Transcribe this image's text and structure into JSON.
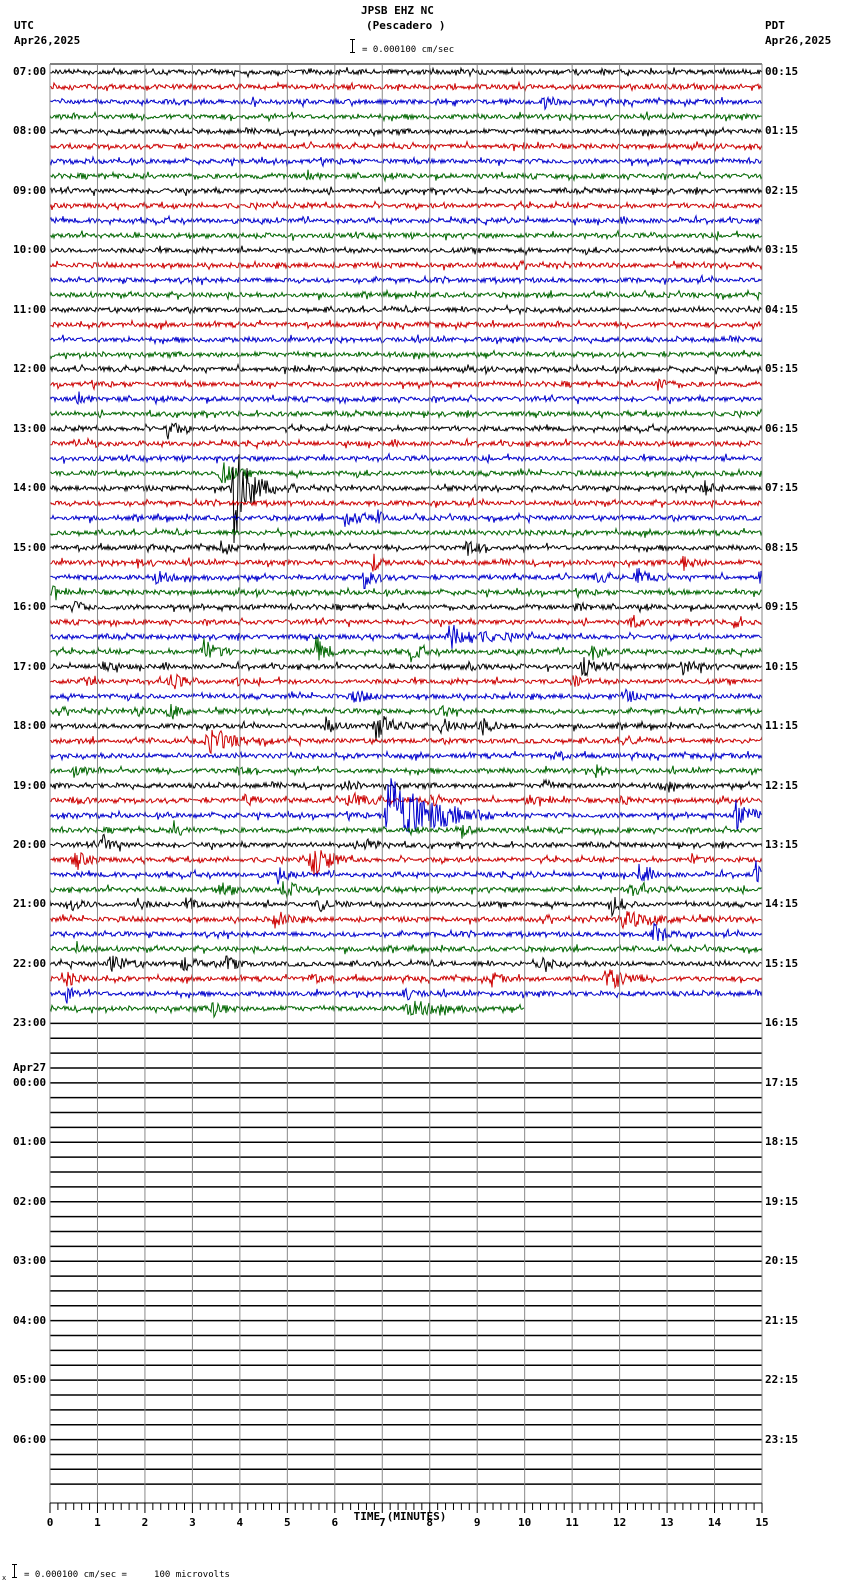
{
  "header": {
    "station": "JPSB EHZ NC",
    "location": "(Pescadero )",
    "left_tz": "UTC",
    "left_date": "Apr26,2025",
    "right_tz": "PDT",
    "right_date": "Apr26,2025",
    "scale_text": "= 0.000100 cm/sec"
  },
  "footer": {
    "scale_prefix": "x",
    "scale_text": "= 0.000100 cm/sec =     100 microvolts"
  },
  "colors": {
    "trace_cycle": [
      "#000000",
      "#cc0000",
      "#0000cc",
      "#006600"
    ],
    "grid": "#888888",
    "empty_line": "#000000"
  },
  "chart_data": {
    "type": "line",
    "title": "JPSB EHZ NC (Pescadero )",
    "xlabel": "TIME (MINUTES)",
    "ylabel": "",
    "x_ticks": [
      "0",
      "1",
      "2",
      "3",
      "4",
      "5",
      "6",
      "7",
      "8",
      "9",
      "10",
      "11",
      "12",
      "13",
      "14",
      "15"
    ],
    "xlim": [
      0,
      15
    ],
    "lines_per_hour": 4,
    "minutes_per_line": 15,
    "total_lines": 96,
    "data_lines": 64,
    "last_line_end_minute": 10.0,
    "left_labels": [
      {
        "line": 0,
        "text": "07:00"
      },
      {
        "line": 4,
        "text": "08:00"
      },
      {
        "line": 8,
        "text": "09:00"
      },
      {
        "line": 12,
        "text": "10:00"
      },
      {
        "line": 16,
        "text": "11:00"
      },
      {
        "line": 20,
        "text": "12:00"
      },
      {
        "line": 24,
        "text": "13:00"
      },
      {
        "line": 28,
        "text": "14:00"
      },
      {
        "line": 32,
        "text": "15:00"
      },
      {
        "line": 36,
        "text": "16:00"
      },
      {
        "line": 40,
        "text": "17:00"
      },
      {
        "line": 44,
        "text": "18:00"
      },
      {
        "line": 48,
        "text": "19:00"
      },
      {
        "line": 52,
        "text": "20:00"
      },
      {
        "line": 56,
        "text": "21:00"
      },
      {
        "line": 60,
        "text": "22:00"
      },
      {
        "line": 64,
        "text": "23:00"
      },
      {
        "line": 68,
        "text": "00:00",
        "date": "Apr27"
      },
      {
        "line": 72,
        "text": "01:00"
      },
      {
        "line": 76,
        "text": "02:00"
      },
      {
        "line": 80,
        "text": "03:00"
      },
      {
        "line": 84,
        "text": "04:00"
      },
      {
        "line": 88,
        "text": "05:00"
      },
      {
        "line": 92,
        "text": "06:00"
      }
    ],
    "right_labels": [
      "00:15",
      "01:15",
      "02:15",
      "03:15",
      "04:15",
      "05:15",
      "06:15",
      "07:15",
      "08:15",
      "09:15",
      "10:15",
      "11:15",
      "12:15",
      "13:15",
      "14:15",
      "15:15",
      "16:15",
      "17:15",
      "18:15",
      "19:15",
      "20:15",
      "21:15",
      "22:15",
      "23:15"
    ],
    "events": [
      {
        "line": 2,
        "min": 10.4,
        "amp": 6,
        "dur": 0.4
      },
      {
        "line": 7,
        "min": 5.4,
        "amp": 6,
        "dur": 0.3
      },
      {
        "line": 21,
        "min": 12.8,
        "amp": 6,
        "dur": 0.4
      },
      {
        "line": 22,
        "min": 0.55,
        "amp": 9,
        "dur": 0.3
      },
      {
        "line": 24,
        "min": 2.45,
        "amp": 10,
        "dur": 0.4
      },
      {
        "line": 25,
        "min": 0.8,
        "amp": 5,
        "dur": 0.3
      },
      {
        "line": 27,
        "min": 3.6,
        "amp": 12,
        "dur": 0.5
      },
      {
        "line": 28,
        "min": 3.85,
        "amp": 60,
        "dur": 0.6
      },
      {
        "line": 28,
        "min": 13.75,
        "amp": 8,
        "dur": 0.4
      },
      {
        "line": 30,
        "min": 6.2,
        "amp": 10,
        "dur": 0.5
      },
      {
        "line": 30,
        "min": 6.9,
        "amp": 6,
        "dur": 0.3
      },
      {
        "line": 32,
        "min": 3.6,
        "amp": 6,
        "dur": 0.3
      },
      {
        "line": 32,
        "min": 8.75,
        "amp": 10,
        "dur": 0.4
      },
      {
        "line": 33,
        "min": 1.8,
        "amp": 6,
        "dur": 0.3
      },
      {
        "line": 33,
        "min": 6.8,
        "amp": 8,
        "dur": 0.3
      },
      {
        "line": 33,
        "min": 13.3,
        "amp": 9,
        "dur": 0.4
      },
      {
        "line": 34,
        "min": 2.2,
        "amp": 8,
        "dur": 0.4
      },
      {
        "line": 34,
        "min": 6.6,
        "amp": 12,
        "dur": 0.4
      },
      {
        "line": 34,
        "min": 11.5,
        "amp": 6,
        "dur": 0.4
      },
      {
        "line": 34,
        "min": 12.35,
        "amp": 10,
        "dur": 0.4
      },
      {
        "line": 34,
        "min": 14.95,
        "amp": 12,
        "dur": 0.2
      },
      {
        "line": 35,
        "min": 0.05,
        "amp": 7,
        "dur": 0.2
      },
      {
        "line": 36,
        "min": 0.5,
        "amp": 7,
        "dur": 0.3
      },
      {
        "line": 36,
        "min": 11.1,
        "amp": 6,
        "dur": 0.3
      },
      {
        "line": 37,
        "min": 12.2,
        "amp": 6,
        "dur": 0.4
      },
      {
        "line": 37,
        "min": 14.4,
        "amp": 6,
        "dur": 0.3
      },
      {
        "line": 38,
        "min": 8.4,
        "amp": 12,
        "dur": 1.2
      },
      {
        "line": 39,
        "min": 3.2,
        "amp": 14,
        "dur": 0.5
      },
      {
        "line": 39,
        "min": 5.6,
        "amp": 14,
        "dur": 0.4
      },
      {
        "line": 39,
        "min": 7.6,
        "amp": 8,
        "dur": 0.4
      },
      {
        "line": 39,
        "min": 11.4,
        "amp": 8,
        "dur": 0.4
      },
      {
        "line": 40,
        "min": 1.1,
        "amp": 10,
        "dur": 0.3
      },
      {
        "line": 40,
        "min": 8.8,
        "amp": 5,
        "dur": 0.3
      },
      {
        "line": 40,
        "min": 11.2,
        "amp": 10,
        "dur": 0.5
      },
      {
        "line": 40,
        "min": 13.3,
        "amp": 10,
        "dur": 0.5
      },
      {
        "line": 41,
        "min": 0.7,
        "amp": 8,
        "dur": 0.3
      },
      {
        "line": 41,
        "min": 2.5,
        "amp": 12,
        "dur": 0.4
      },
      {
        "line": 41,
        "min": 3.9,
        "amp": 5,
        "dur": 0.2
      },
      {
        "line": 41,
        "min": 11.0,
        "amp": 6,
        "dur": 0.3
      },
      {
        "line": 42,
        "min": 6.4,
        "amp": 9,
        "dur": 0.4
      },
      {
        "line": 42,
        "min": 12.1,
        "amp": 7,
        "dur": 0.4
      },
      {
        "line": 43,
        "min": 1.8,
        "amp": 6,
        "dur": 0.3
      },
      {
        "line": 43,
        "min": 2.5,
        "amp": 10,
        "dur": 0.4
      },
      {
        "line": 43,
        "min": 8.2,
        "amp": 6,
        "dur": 0.3
      },
      {
        "line": 44,
        "min": 5.8,
        "amp": 8,
        "dur": 0.4
      },
      {
        "line": 44,
        "min": 6.85,
        "amp": 14,
        "dur": 0.6
      },
      {
        "line": 44,
        "min": 8.2,
        "amp": 10,
        "dur": 0.4
      },
      {
        "line": 44,
        "min": 9.0,
        "amp": 10,
        "dur": 0.5
      },
      {
        "line": 45,
        "min": 3.3,
        "amp": 12,
        "dur": 1.0
      },
      {
        "line": 45,
        "min": 12.1,
        "amp": 7,
        "dur": 0.3
      },
      {
        "line": 46,
        "min": 10.6,
        "amp": 6,
        "dur": 0.3
      },
      {
        "line": 47,
        "min": 0.5,
        "amp": 8,
        "dur": 0.3
      },
      {
        "line": 47,
        "min": 3.9,
        "amp": 6,
        "dur": 0.3
      },
      {
        "line": 47,
        "min": 11.5,
        "amp": 6,
        "dur": 0.3
      },
      {
        "line": 48,
        "min": 6.2,
        "amp": 6,
        "dur": 0.4
      },
      {
        "line": 48,
        "min": 10.4,
        "amp": 6,
        "dur": 0.3
      },
      {
        "line": 48,
        "min": 12.9,
        "amp": 6,
        "dur": 0.3
      },
      {
        "line": 49,
        "min": 0.5,
        "amp": 7,
        "dur": 0.3
      },
      {
        "line": 49,
        "min": 4.1,
        "amp": 8,
        "dur": 0.3
      },
      {
        "line": 49,
        "min": 6.2,
        "amp": 8,
        "dur": 0.8
      },
      {
        "line": 49,
        "min": 8.0,
        "amp": 6,
        "dur": 0.4
      },
      {
        "line": 49,
        "min": 10.0,
        "amp": 6,
        "dur": 0.4
      },
      {
        "line": 49,
        "min": 12.0,
        "amp": 6,
        "dur": 0.3
      },
      {
        "line": 50,
        "min": 7.1,
        "amp": 45,
        "dur": 1.5
      },
      {
        "line": 50,
        "min": 14.45,
        "amp": 14,
        "dur": 0.6
      },
      {
        "line": 51,
        "min": 2.6,
        "amp": 7,
        "dur": 0.4
      },
      {
        "line": 51,
        "min": 8.6,
        "amp": 7,
        "dur": 0.4
      },
      {
        "line": 52,
        "min": 1.1,
        "amp": 10,
        "dur": 0.4
      },
      {
        "line": 52,
        "min": 6.6,
        "amp": 10,
        "dur": 0.4
      },
      {
        "line": 53,
        "min": 0.5,
        "amp": 9,
        "dur": 0.5
      },
      {
        "line": 53,
        "min": 5.5,
        "amp": 20,
        "dur": 0.6
      },
      {
        "line": 53,
        "min": 13.5,
        "amp": 6,
        "dur": 0.3
      },
      {
        "line": 54,
        "min": 4.8,
        "amp": 8,
        "dur": 0.3
      },
      {
        "line": 54,
        "min": 12.4,
        "amp": 10,
        "dur": 0.4
      },
      {
        "line": 54,
        "min": 14.85,
        "amp": 12,
        "dur": 0.3
      },
      {
        "line": 55,
        "min": 3.6,
        "amp": 8,
        "dur": 0.5
      },
      {
        "line": 55,
        "min": 4.9,
        "amp": 8,
        "dur": 0.6
      },
      {
        "line": 55,
        "min": 12.2,
        "amp": 7,
        "dur": 0.6
      },
      {
        "line": 56,
        "min": 0.4,
        "amp": 8,
        "dur": 0.4
      },
      {
        "line": 56,
        "min": 1.8,
        "amp": 7,
        "dur": 0.3
      },
      {
        "line": 56,
        "min": 2.9,
        "amp": 8,
        "dur": 0.3
      },
      {
        "line": 56,
        "min": 5.65,
        "amp": 8,
        "dur": 0.4
      },
      {
        "line": 56,
        "min": 11.8,
        "amp": 10,
        "dur": 0.4
      },
      {
        "line": 57,
        "min": 4.7,
        "amp": 8,
        "dur": 0.5
      },
      {
        "line": 57,
        "min": 12.0,
        "amp": 8,
        "dur": 1.5
      },
      {
        "line": 58,
        "min": 12.7,
        "amp": 10,
        "dur": 0.5
      },
      {
        "line": 59,
        "min": 0.55,
        "amp": 7,
        "dur": 0.3
      },
      {
        "line": 60,
        "min": 1.25,
        "amp": 10,
        "dur": 0.6
      },
      {
        "line": 60,
        "min": 2.8,
        "amp": 9,
        "dur": 0.4
      },
      {
        "line": 60,
        "min": 3.7,
        "amp": 8,
        "dur": 0.4
      },
      {
        "line": 60,
        "min": 10.3,
        "amp": 10,
        "dur": 0.4
      },
      {
        "line": 61,
        "min": 0.3,
        "amp": 8,
        "dur": 0.4
      },
      {
        "line": 61,
        "min": 5.5,
        "amp": 6,
        "dur": 0.4
      },
      {
        "line": 61,
        "min": 9.3,
        "amp": 7,
        "dur": 0.3
      },
      {
        "line": 61,
        "min": 11.7,
        "amp": 16,
        "dur": 0.6
      },
      {
        "line": 62,
        "min": 0.35,
        "amp": 9,
        "dur": 0.3
      },
      {
        "line": 62,
        "min": 7.4,
        "amp": 6,
        "dur": 0.5
      },
      {
        "line": 63,
        "min": 3.4,
        "amp": 12,
        "dur": 0.4
      },
      {
        "line": 63,
        "min": 7.5,
        "amp": 8,
        "dur": 1.2
      }
    ]
  }
}
